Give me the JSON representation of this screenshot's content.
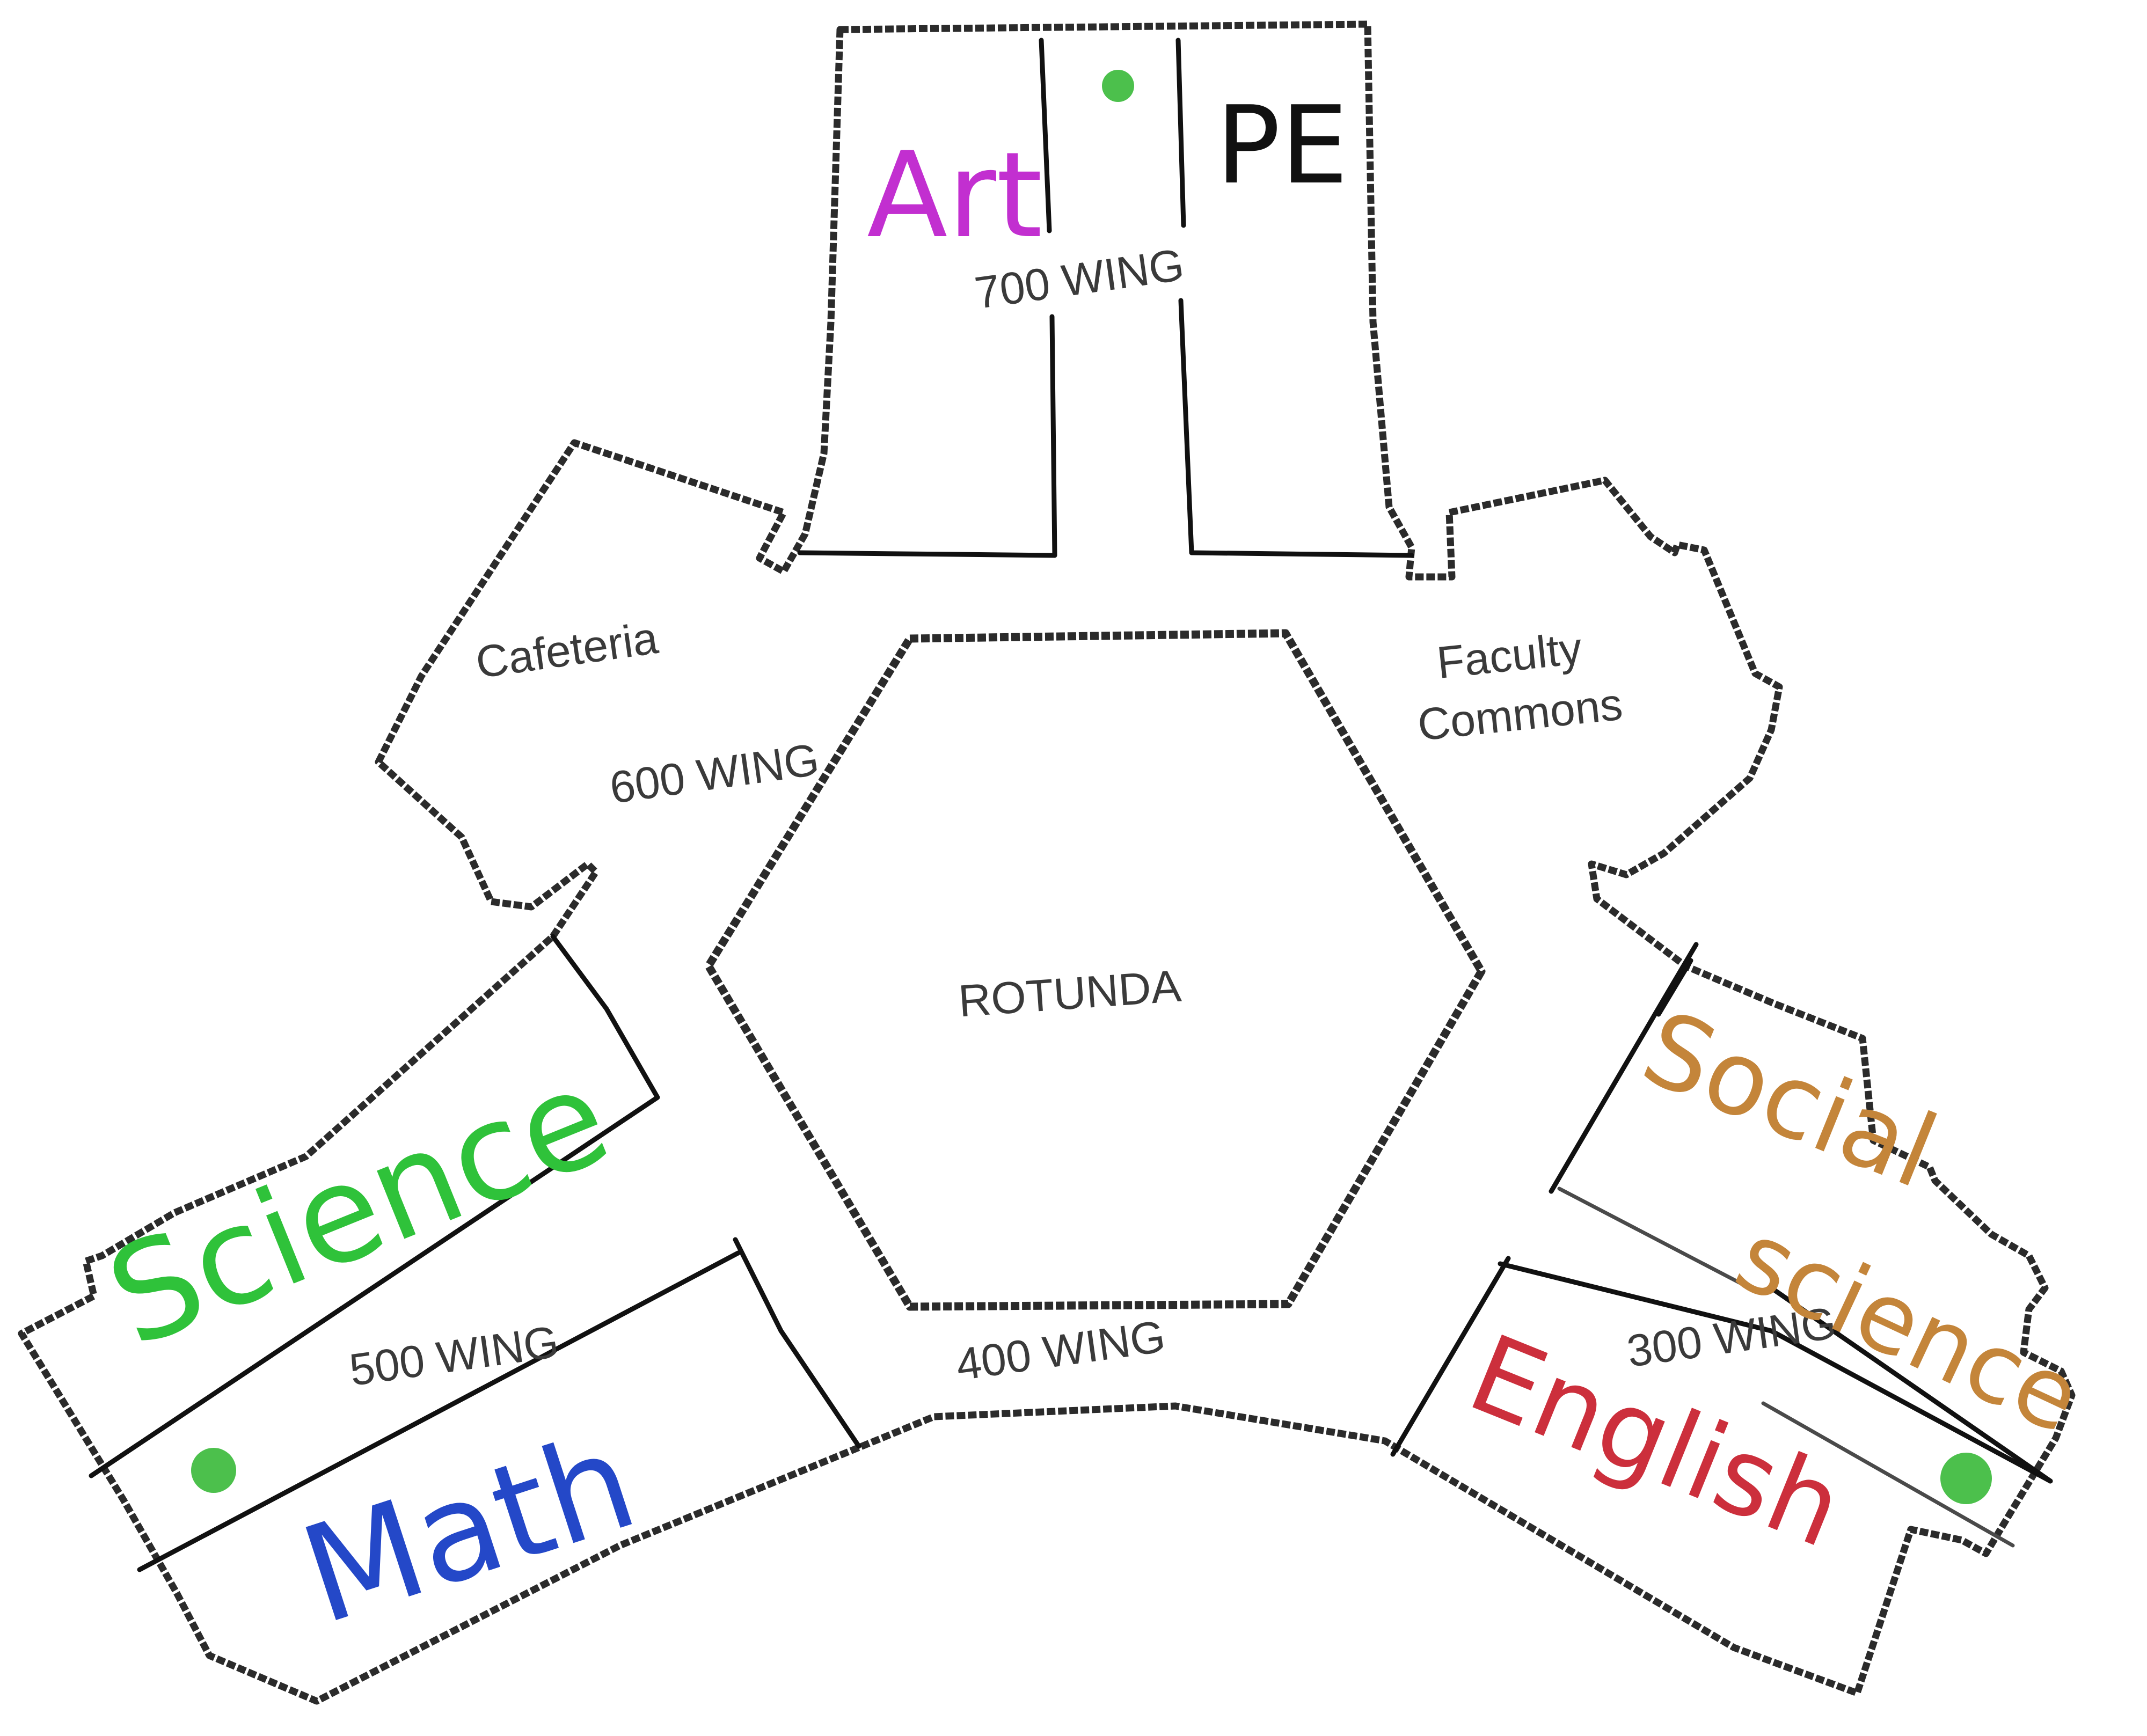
{
  "map": {
    "wings": {
      "w700": "700 WING",
      "w600": "600 WING",
      "w500": "500 WING",
      "w400": "400 WING",
      "w300": "300 WING"
    },
    "rooms": {
      "rotunda": "ROTUNDA",
      "cafeteria": "Cafeteria",
      "faculty_line1": "Faculty",
      "faculty_line2": "Commons"
    },
    "subjects": {
      "art": "Art",
      "pe": "PE",
      "science": "Science",
      "math": "Math",
      "social_line1": "Social",
      "social_line2": "science",
      "english": "English"
    },
    "colors": {
      "art": "#c22fd0",
      "pe": "#111111",
      "science": "#2fc23a",
      "math": "#2448c8",
      "social": "#c4853a",
      "english": "#cc2f3c",
      "marker": "#4cc04c"
    },
    "markers": [
      "green-dot-700-wing",
      "green-dot-500-wing",
      "green-dot-300-wing"
    ]
  }
}
